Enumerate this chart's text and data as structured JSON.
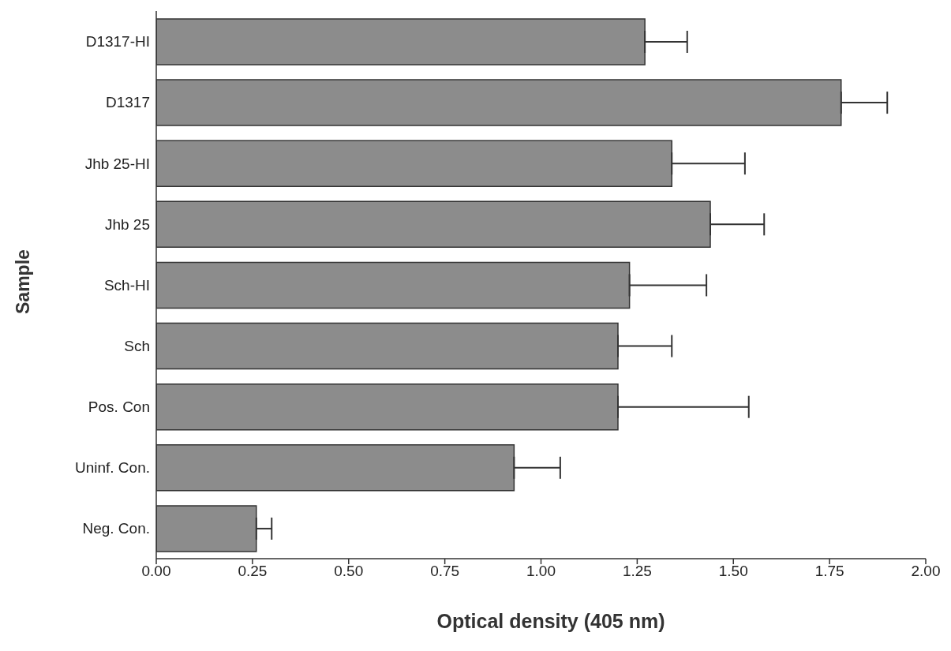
{
  "chart_data": {
    "type": "bar",
    "orientation": "horizontal",
    "xlabel": "Optical density (405 nm)",
    "ylabel": "Sample",
    "categories": [
      "D1317-HI",
      "D1317",
      "Jhb 25-HI",
      "Jhb 25",
      "Sch-HI",
      "Sch",
      "Pos. Con",
      "Uninf. Con.",
      "Neg. Con."
    ],
    "values": [
      1.27,
      1.78,
      1.34,
      1.44,
      1.23,
      1.2,
      1.2,
      0.93,
      0.26
    ],
    "errors": [
      [
        1.27,
        1.38
      ],
      [
        1.78,
        1.9
      ],
      [
        1.34,
        1.53
      ],
      [
        1.44,
        1.58
      ],
      [
        1.23,
        1.43
      ],
      [
        1.2,
        1.34
      ],
      [
        1.2,
        1.54
      ],
      [
        0.93,
        1.05
      ],
      [
        0.26,
        0.3
      ]
    ],
    "color": "#8c8c8c",
    "xlim": [
      0,
      2
    ],
    "xticks": [
      {
        "value": 0,
        "label": "0.00"
      },
      {
        "value": 0.25,
        "label": "0.25"
      },
      {
        "value": 0.5,
        "label": "0.50"
      },
      {
        "value": 0.75,
        "label": "0.75"
      },
      {
        "value": 1,
        "label": "1.00"
      },
      {
        "value": 1.25,
        "label": "1.25"
      },
      {
        "value": 1.5,
        "label": "1.50"
      },
      {
        "value": 1.75,
        "label": "1.75"
      },
      {
        "value": 2,
        "label": "2.00"
      }
    ],
    "grid": false
  }
}
